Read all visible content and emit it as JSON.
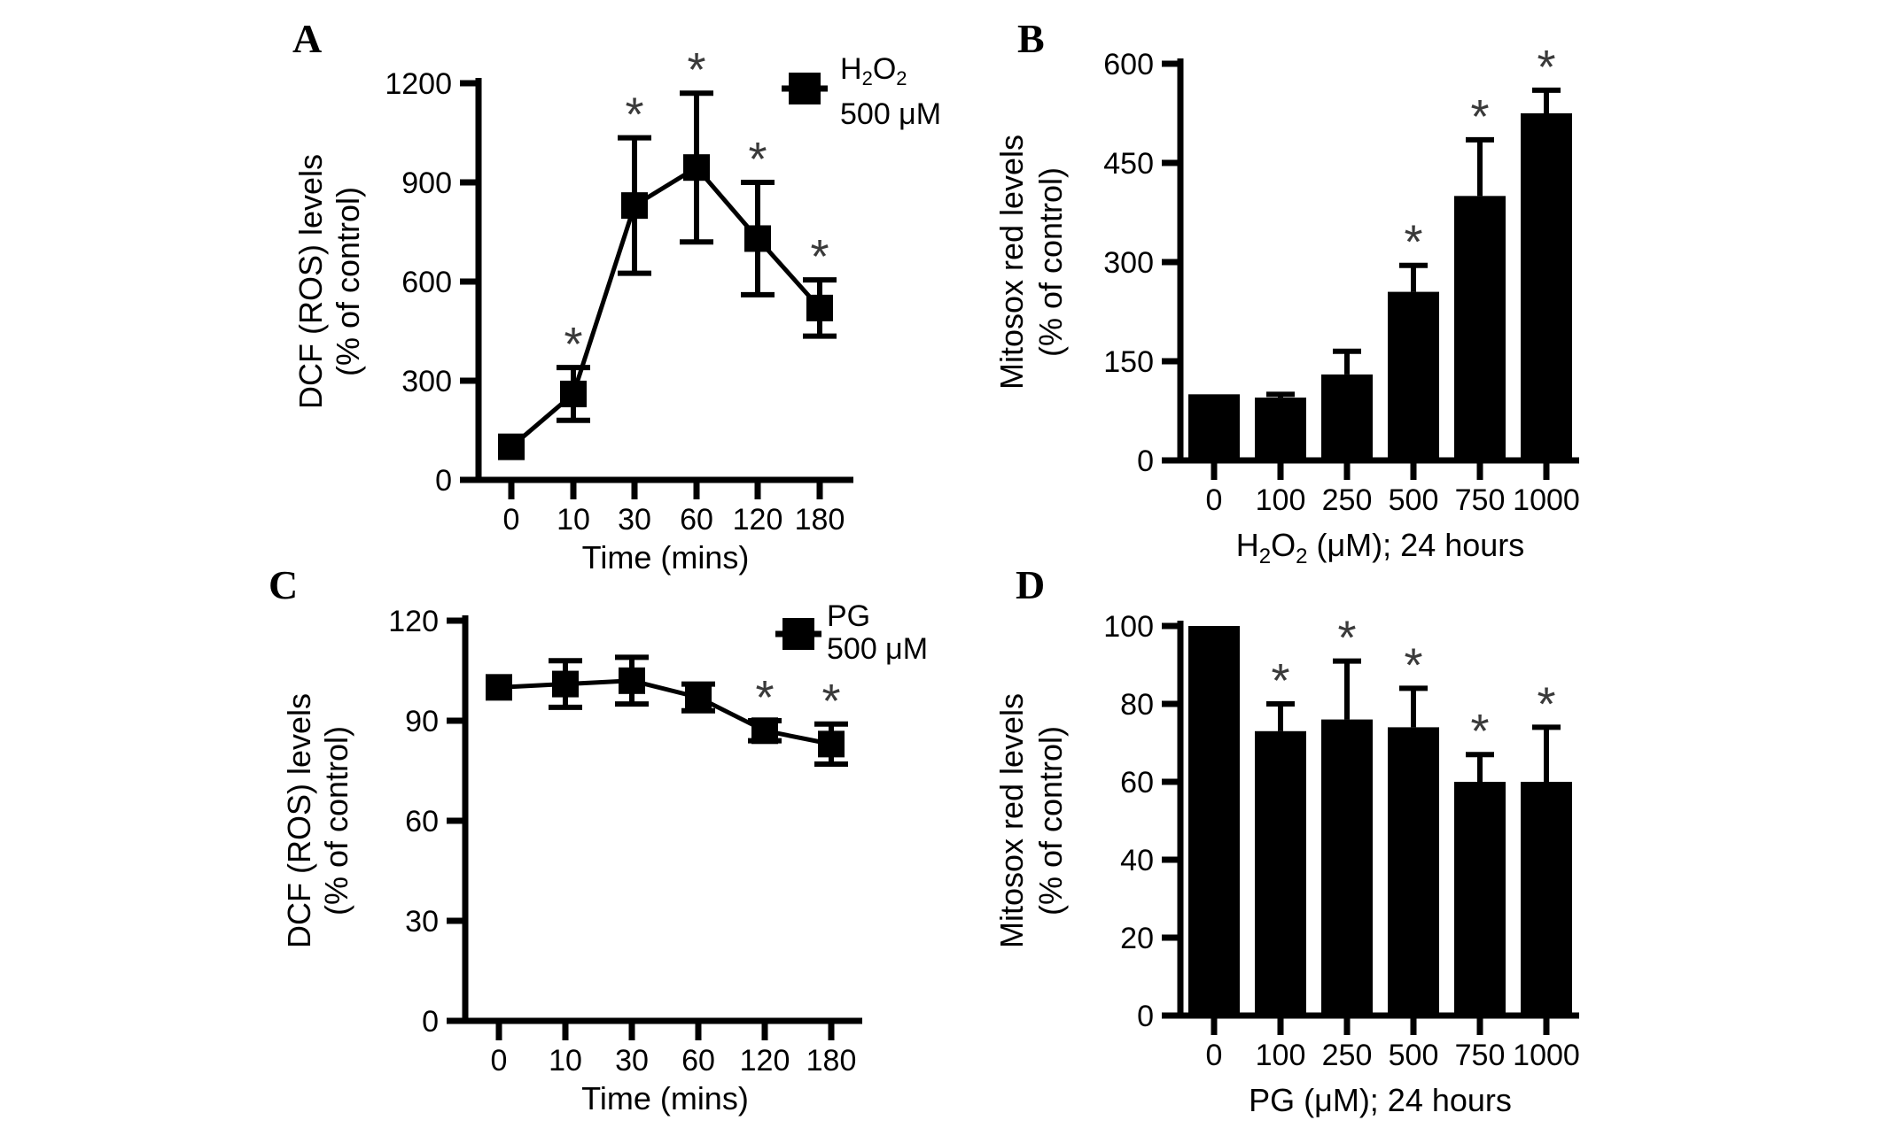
{
  "figure": {
    "background": "#ffffff",
    "ink": "#000000",
    "significance_color": "#3a3a3a",
    "significance_marker": "*"
  },
  "chart_data": [
    {
      "panel": "A",
      "type": "line",
      "xlabel": "Time (mins)",
      "ylabel_lines": [
        "DCF (ROS) levels",
        "(% of control)"
      ],
      "x": [
        0,
        10,
        30,
        60,
        120,
        180
      ],
      "x_tick_labels": [
        "0",
        "10",
        "30",
        "60",
        "120",
        "180"
      ],
      "ylim": [
        0,
        1200
      ],
      "yticks": [
        0,
        300,
        600,
        900,
        1200
      ],
      "legend_lines": [
        "H_2O_2",
        "500 μM"
      ],
      "series": [
        {
          "name": "H_2O_2 500 μM",
          "values": [
            100,
            260,
            830,
            945,
            730,
            520
          ],
          "errors": [
            0,
            80,
            205,
            225,
            170,
            85
          ],
          "significant": [
            false,
            true,
            true,
            true,
            true,
            true
          ]
        }
      ]
    },
    {
      "panel": "B",
      "type": "bar",
      "xlabel": "H_2O_2 (μM); 24 hours",
      "ylabel_lines": [
        "Mitosox red levels",
        "(% of control)"
      ],
      "x_tick_labels": [
        "0",
        "100",
        "250",
        "500",
        "750",
        "1000"
      ],
      "ylim": [
        0,
        600
      ],
      "yticks": [
        0,
        150,
        300,
        450,
        600
      ],
      "series": [
        {
          "name": "Mitosox red levels",
          "values": [
            100,
            95,
            130,
            255,
            400,
            525
          ],
          "errors": [
            0,
            5,
            35,
            40,
            85,
            35
          ],
          "significant": [
            false,
            false,
            false,
            true,
            true,
            true
          ]
        }
      ]
    },
    {
      "panel": "C",
      "type": "line",
      "xlabel": "Time (mins)",
      "ylabel_lines": [
        "DCF (ROS) levels",
        "(% of control)"
      ],
      "x": [
        0,
        10,
        30,
        60,
        120,
        180
      ],
      "x_tick_labels": [
        "0",
        "10",
        "30",
        "60",
        "120",
        "180"
      ],
      "ylim": [
        0,
        120
      ],
      "yticks": [
        0,
        30,
        60,
        90,
        120
      ],
      "legend_lines": [
        "PG",
        "500 μM"
      ],
      "series": [
        {
          "name": "PG 500 μM",
          "values": [
            100,
            101,
            102,
            97,
            87,
            83
          ],
          "errors": [
            0,
            7,
            7,
            4,
            3,
            6
          ],
          "significant": [
            false,
            false,
            false,
            false,
            true,
            true
          ]
        }
      ]
    },
    {
      "panel": "D",
      "type": "bar",
      "xlabel": "PG (μM); 24 hours",
      "ylabel_lines": [
        "Mitosox red levels",
        "(% of control)"
      ],
      "x_tick_labels": [
        "0",
        "100",
        "250",
        "500",
        "750",
        "1000"
      ],
      "ylim": [
        0,
        100
      ],
      "yticks": [
        0,
        20,
        40,
        60,
        80,
        100
      ],
      "series": [
        {
          "name": "Mitosox red levels",
          "values": [
            100,
            73,
            76,
            74,
            60,
            60
          ],
          "errors": [
            0,
            7,
            15,
            10,
            7,
            14
          ],
          "significant": [
            false,
            true,
            true,
            true,
            true,
            true
          ]
        }
      ]
    }
  ]
}
